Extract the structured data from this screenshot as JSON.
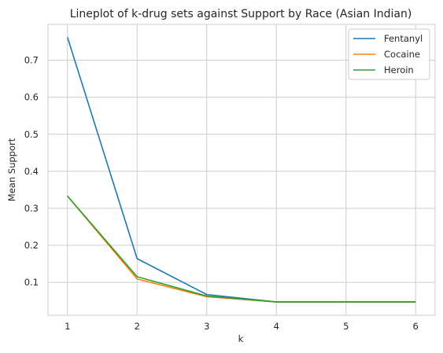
{
  "chart_data": {
    "type": "line",
    "title": "Lineplot of k-drug sets against Support by Race (Asian Indian)",
    "xlabel": "k",
    "ylabel": "Mean Support",
    "x": [
      1,
      2,
      3,
      4,
      5,
      6
    ],
    "xticks": [
      "1",
      "2",
      "3",
      "4",
      "5",
      "6"
    ],
    "yticks": [
      "0.1",
      "0.2",
      "0.3",
      "0.4",
      "0.5",
      "0.6",
      "0.7"
    ],
    "xlim": [
      0.72,
      6.28
    ],
    "ylim": [
      0.011,
      0.797
    ],
    "grid": true,
    "legend_position": "top-right",
    "series": [
      {
        "name": "Fentanyl",
        "color": "#1f77b4",
        "values": [
          0.762,
          0.164,
          0.067,
          0.047,
          0.047,
          0.047
        ]
      },
      {
        "name": "Cocaine",
        "color": "#ff7f0e",
        "values": [
          0.333,
          0.109,
          0.061,
          0.047,
          0.047,
          0.047
        ]
      },
      {
        "name": "Heroin",
        "color": "#2ca02c",
        "values": [
          0.333,
          0.115,
          0.063,
          0.047,
          0.047,
          0.047
        ]
      }
    ]
  }
}
